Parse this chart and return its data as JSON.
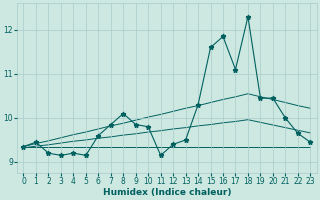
{
  "xlabel": "Humidex (Indice chaleur)",
  "x_values": [
    0,
    1,
    2,
    3,
    4,
    5,
    6,
    7,
    8,
    9,
    10,
    11,
    12,
    13,
    14,
    15,
    16,
    17,
    18,
    19,
    20,
    21,
    22,
    23
  ],
  "main_line": [
    9.35,
    9.45,
    9.2,
    9.15,
    9.2,
    9.15,
    9.6,
    9.85,
    10.1,
    9.85,
    9.8,
    9.15,
    9.4,
    9.5,
    10.3,
    11.6,
    11.85,
    11.1,
    12.3,
    10.45,
    10.45,
    10.0,
    9.65,
    9.45
  ],
  "trend_upper": [
    9.35,
    9.42,
    9.48,
    9.55,
    9.62,
    9.68,
    9.75,
    9.82,
    9.88,
    9.95,
    10.02,
    10.08,
    10.15,
    10.22,
    10.28,
    10.35,
    10.42,
    10.48,
    10.55,
    10.48,
    10.42,
    10.35,
    10.28,
    10.22
  ],
  "trend_lower": [
    9.32,
    9.36,
    9.39,
    9.43,
    9.47,
    9.5,
    9.54,
    9.57,
    9.61,
    9.64,
    9.68,
    9.71,
    9.75,
    9.78,
    9.82,
    9.85,
    9.89,
    9.92,
    9.96,
    9.9,
    9.84,
    9.78,
    9.72,
    9.66
  ],
  "flat_line": [
    9.35,
    9.35,
    9.35,
    9.35,
    9.35,
    9.35,
    9.35,
    9.35,
    9.35,
    9.35,
    9.35,
    9.35,
    9.35,
    9.35,
    9.35,
    9.35,
    9.35,
    9.35,
    9.35,
    9.35,
    9.35,
    9.35,
    9.35,
    9.35
  ],
  "bg_color": "#cce8e0",
  "grid_color": "#aacccc",
  "line_color": "#006060",
  "ylim_min": 8.75,
  "ylim_max": 12.6,
  "yticks": [
    9,
    10,
    11,
    12
  ],
  "xticks": [
    0,
    1,
    2,
    3,
    4,
    5,
    6,
    7,
    8,
    9,
    10,
    11,
    12,
    13,
    14,
    15,
    16,
    17,
    18,
    19,
    20,
    21,
    22,
    23
  ]
}
